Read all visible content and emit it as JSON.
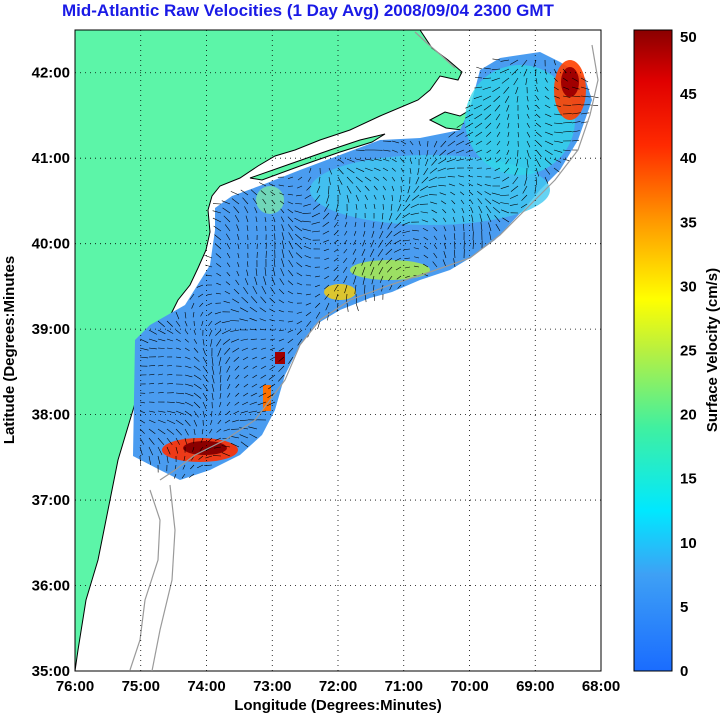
{
  "title": "Mid-Atlantic Raw Velocities (1 Day Avg) 2008/09/04 2300 GMT",
  "xlabel": "Longitude (Degrees:Minutes)",
  "ylabel": "Latitude (Degrees:Minutes",
  "x_ticks": [
    "76:00",
    "75:00",
    "74:00",
    "73:00",
    "72:00",
    "71:00",
    "70:00",
    "69:00",
    "68:00"
  ],
  "y_ticks": [
    "35:00",
    "36:00",
    "37:00",
    "38:00",
    "39:00",
    "40:00",
    "41:00",
    "42:00"
  ],
  "colorbar": {
    "label": "Surface Velocity (cm/s)",
    "ticks": [
      "0",
      "5",
      "10",
      "15",
      "20",
      "25",
      "30",
      "35",
      "40",
      "45",
      "50"
    ],
    "min": 0,
    "max": 50
  },
  "colors": {
    "land": "#5cf5a8",
    "ocean": "#ffffff",
    "title": "#1a1ae6",
    "contour": "#9a9a9a"
  },
  "chart_data": {
    "type": "heatmap",
    "x_range_deg_west": [
      76,
      68
    ],
    "y_range_deg_north": [
      35,
      42.5
    ],
    "grid": true,
    "hotspots": [
      {
        "lon": -74.3,
        "lat": 37.6,
        "speed": 48
      },
      {
        "lon": -68.6,
        "lat": 41.8,
        "speed": 45
      },
      {
        "lon": -72.9,
        "lat": 38.6,
        "speed": 47
      },
      {
        "lon": -73.1,
        "lat": 38.2,
        "speed": 35
      },
      {
        "lon": -72.0,
        "lat": 39.5,
        "speed": 30
      },
      {
        "lon": -71.2,
        "lat": 39.8,
        "speed": 25
      }
    ]
  }
}
